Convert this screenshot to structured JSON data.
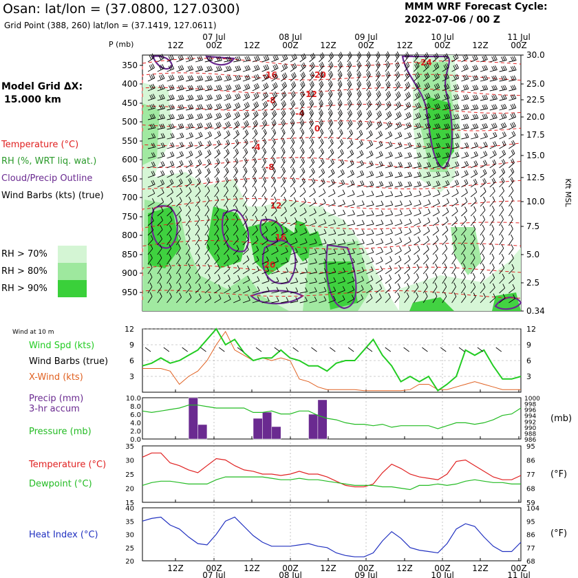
{
  "header": {
    "title": "Osan:  lat/lon = (37.0800, 127.0300)",
    "grid_point": "Grid Point (388, 260) lat/lon = (37.1419, 127.0611)",
    "cycle_label": "MMM WRF Forecast Cycle:",
    "cycle_value": "2022-07-06 / 00  Z",
    "model_grid_label": "Model Grid ΔX:",
    "model_grid_value": "15.000 km"
  },
  "colors": {
    "temperature": "#e02020",
    "rh": "#2a9a2a",
    "cloud": "#6a2a90",
    "wind": "#000000",
    "rh70": "#d4f5d4",
    "rh80": "#9ee89e",
    "rh90": "#3ad03a",
    "xwind": "#e06020",
    "windspd": "#22cc22",
    "precip": "#6a2a90",
    "pressure": "#22bb22",
    "dewpoint": "#22bb22",
    "heatindex": "#2030c0"
  },
  "legend": {
    "temperature": "Temperature (°C)",
    "rh": "RH (%, WRT liq. wat.)",
    "cloud": "Cloud/Precip Outline",
    "wind_barbs": "Wind Barbs (kts) (true)",
    "rh70": "RH > 70%",
    "rh80": "RH > 80%",
    "rh90": "RH > 90%"
  },
  "time_axis": {
    "hour_labels": [
      "12Z",
      "00Z",
      "12Z",
      "00Z",
      "12Z",
      "00Z",
      "12Z",
      "00Z",
      "12Z",
      "00Z"
    ],
    "day_labels": [
      "07 Jul",
      "08 Jul",
      "09 Jul",
      "10 Jul",
      "11 Jul"
    ]
  },
  "chart_data": [
    {
      "type": "heatmap",
      "title": "",
      "ylabel_left": "P (mb)",
      "ylabel_right": "Kft MSL",
      "pressure_ticks": [
        "350",
        "400",
        "450",
        "500",
        "550",
        "600",
        "650",
        "700",
        "750",
        "800",
        "850",
        "900",
        "950"
      ],
      "height_ticks": [
        "30.0",
        "25.0",
        "22.5",
        "20.0",
        "17.5",
        "15.0",
        "12.5",
        "10.0",
        "7.5",
        "5.0",
        "2.5",
        "0.34"
      ],
      "temperature_contour_labels": [
        "-24",
        "-16",
        "-20",
        "-12",
        "-8",
        "-4",
        "0",
        "-4",
        "-8",
        "12",
        "16",
        "20"
      ],
      "legend": [
        "Temperature (°C)",
        "RH (%, WRT liq. wat.)",
        "Cloud/Precip Outline",
        "Wind Barbs (kts) (true)"
      ]
    },
    {
      "type": "line",
      "label": "Wind at 10 m",
      "series": [
        {
          "name": "Wind Spd (kts)",
          "values": [
            5,
            5.5,
            6.5,
            5.5,
            6,
            7,
            8,
            10,
            12,
            9,
            10,
            7.5,
            6,
            6.5,
            6.5,
            8,
            6.5,
            6,
            5,
            5,
            4,
            5.5,
            6,
            6,
            8,
            10,
            7,
            5,
            2,
            3,
            2,
            3,
            0.3,
            1.5,
            3,
            8,
            7,
            8,
            5,
            2.5,
            2.5,
            3
          ]
        },
        {
          "name": "X-Wind (kts)",
          "values": [
            4.5,
            4.5,
            4.5,
            4,
            1.5,
            3,
            4,
            6,
            9,
            11.5,
            8,
            7,
            6,
            6.5,
            6,
            6.5,
            6,
            2.5,
            2,
            1,
            0.5,
            0.5,
            0.5,
            0.5,
            0.3,
            0.3,
            0.3,
            0.3,
            0.3,
            0.5,
            1.5,
            1.5,
            0.5,
            0.5,
            1,
            1.5,
            2,
            1.5,
            1,
            0.5,
            0.5,
            0.5
          ]
        }
      ],
      "legend": [
        "Wind Spd (kts)",
        "Wind Barbs (true)",
        "X-Wind (kts)"
      ],
      "yticks": [
        "3",
        "6",
        "9",
        "12"
      ],
      "ylim": [
        0,
        12
      ]
    },
    {
      "type": "bar",
      "series": [
        {
          "name": "Precip (mm) 3-hr accum",
          "values": [
            0,
            0,
            0,
            0,
            0,
            10,
            3.5,
            0,
            0,
            0,
            0,
            0,
            5,
            6.5,
            3,
            0,
            0,
            0,
            6,
            9.5,
            0,
            0,
            0,
            0,
            0,
            0,
            0,
            0,
            0,
            0,
            0,
            0,
            0,
            0,
            0,
            0,
            0,
            0,
            0,
            0,
            0
          ]
        },
        {
          "name": "Pressure (mb)",
          "values": [
            995.5,
            995,
            995.5,
            996,
            996.5,
            997.5,
            997.5,
            997,
            996.5,
            996.5,
            996.5,
            996.5,
            995,
            995,
            995.5,
            994.5,
            994.5,
            995.5,
            995.5,
            994,
            993,
            992.5,
            991.5,
            991,
            991,
            990.5,
            991,
            990,
            990.5,
            990.5,
            990.5,
            990.5,
            989.5,
            990.5,
            991.5,
            991.5,
            991,
            991.5,
            992.5,
            994,
            994.5,
            996.5
          ]
        }
      ],
      "legend": [
        "Precip (mm)",
        "3-hr accum",
        "Pressure (mb)"
      ],
      "precip_ticks": [
        "0.0",
        "2.0",
        "4.0",
        "6.0",
        "8.0",
        "10.0"
      ],
      "pressure_ticks": [
        "986",
        "988",
        "990",
        "992",
        "994",
        "996",
        "998",
        "1000"
      ],
      "precip_ylim": [
        0,
        10
      ],
      "pressure_ylim": [
        986,
        1000
      ],
      "right_unit": "(mb)"
    },
    {
      "type": "line",
      "series": [
        {
          "name": "Temperature (°C)",
          "values": [
            31,
            32.5,
            32.5,
            29,
            28,
            26.5,
            25.5,
            28,
            30.5,
            30,
            28,
            26.5,
            26,
            25,
            25,
            24.5,
            25,
            26,
            25,
            25,
            24,
            22.5,
            21,
            20.5,
            20.5,
            21.5,
            25.5,
            28.5,
            27,
            25,
            24,
            23.5,
            23,
            25,
            29.5,
            30,
            28,
            26,
            24,
            23,
            23,
            24.5
          ]
        },
        {
          "name": "Dewpoint (°C)",
          "values": [
            21,
            22,
            22.5,
            22.5,
            22,
            21.5,
            21.5,
            21.5,
            23,
            24,
            24,
            24,
            24,
            24,
            23.5,
            23,
            23,
            23.5,
            23,
            23,
            22.5,
            22,
            21.5,
            21,
            21,
            21,
            20.5,
            20.5,
            20,
            19.5,
            21,
            21,
            21.5,
            21,
            21.5,
            22.5,
            23,
            22.5,
            22,
            22,
            21.5,
            21.5
          ]
        }
      ],
      "legend": [
        "Temperature (°C)",
        "Dewpoint (°C)"
      ],
      "yticks_left": [
        "15",
        "20",
        "25",
        "30",
        "35"
      ],
      "yticks_right": [
        "59",
        "68",
        "77",
        "86",
        "95"
      ],
      "ylim": [
        15,
        35
      ],
      "right_unit": "(°F)"
    },
    {
      "type": "line",
      "series": [
        {
          "name": "Heat Index (°C)",
          "values": [
            35,
            36,
            36.5,
            33.5,
            32,
            29,
            26.5,
            26,
            30,
            35,
            36.5,
            33,
            29.5,
            27,
            25.5,
            25.5,
            25.5,
            26,
            26.5,
            25.5,
            25,
            23,
            22,
            21.5,
            21.5,
            23,
            27.5,
            31,
            28.5,
            25,
            24,
            23.5,
            23,
            26.5,
            32,
            34,
            33,
            29,
            25.5,
            23.5,
            23.5,
            27
          ]
        }
      ],
      "legend": [
        "Heat Index (°C)"
      ],
      "yticks_left": [
        "20",
        "25",
        "30",
        "35",
        "40"
      ],
      "yticks_right": [
        "68",
        "77",
        "86",
        "95",
        "104"
      ],
      "ylim": [
        20,
        40
      ],
      "right_unit": "(°F)"
    }
  ]
}
